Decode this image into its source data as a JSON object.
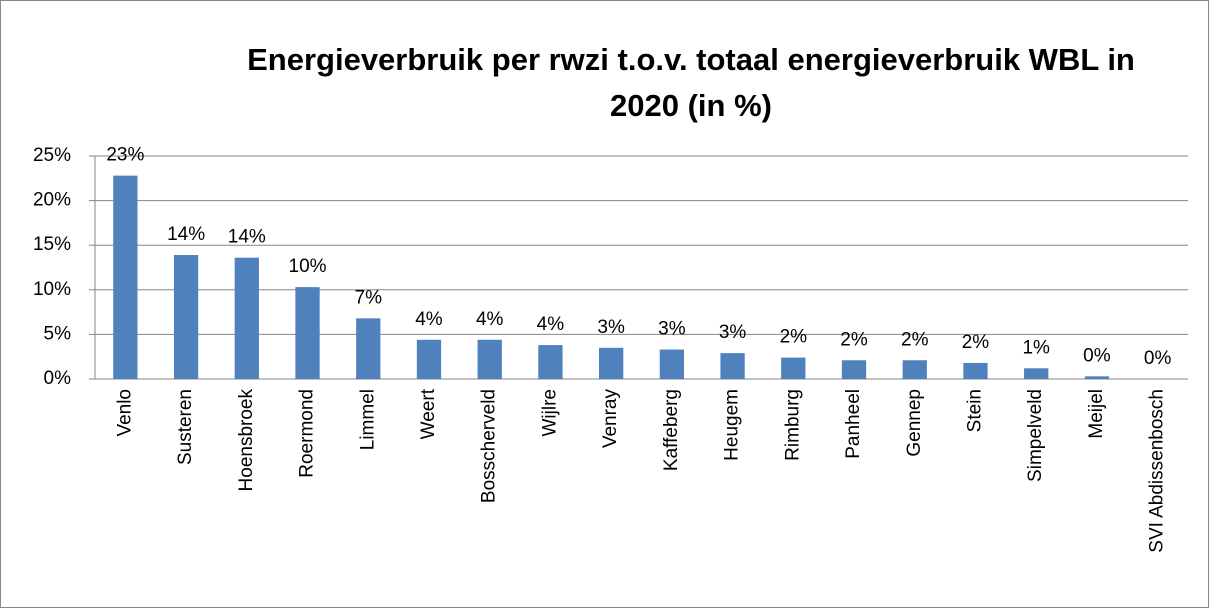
{
  "chart_data": {
    "type": "bar",
    "title": "Energieverbruik per rwzi t.o.v. totaal energieverbruik WBL in 2020 (in %)",
    "categories": [
      "Venlo",
      "Susteren",
      "Hoensbroek",
      "Roermond",
      "Limmel",
      "Weert",
      "Bosscherveld",
      "Wijlre",
      "Venray",
      "Kaffeberg",
      "Heugem",
      "Rimburg",
      "Panheel",
      "Gennep",
      "Stein",
      "Simpelveld",
      "Meijel",
      "SVI Abdissenbosch"
    ],
    "values": [
      22.8,
      13.9,
      13.6,
      10.3,
      6.8,
      4.4,
      4.4,
      3.8,
      3.5,
      3.3,
      2.9,
      2.4,
      2.1,
      2.1,
      1.8,
      1.2,
      0.3,
      0.0
    ],
    "value_labels": [
      "23%",
      "14%",
      "14%",
      "10%",
      "7%",
      "4%",
      "4%",
      "4%",
      "3%",
      "3%",
      "3%",
      "2%",
      "2%",
      "2%",
      "2%",
      "1%",
      "0%",
      "0%"
    ],
    "color": "#4f81bd",
    "ylim": [
      0,
      25
    ],
    "yticks": [
      {
        "value": 0,
        "label": "0%"
      },
      {
        "value": 5,
        "label": "5%"
      },
      {
        "value": 10,
        "label": "10%"
      },
      {
        "value": 15,
        "label": "15%"
      },
      {
        "value": 20,
        "label": "20%"
      },
      {
        "value": 25,
        "label": "25%"
      }
    ],
    "grid": true
  }
}
